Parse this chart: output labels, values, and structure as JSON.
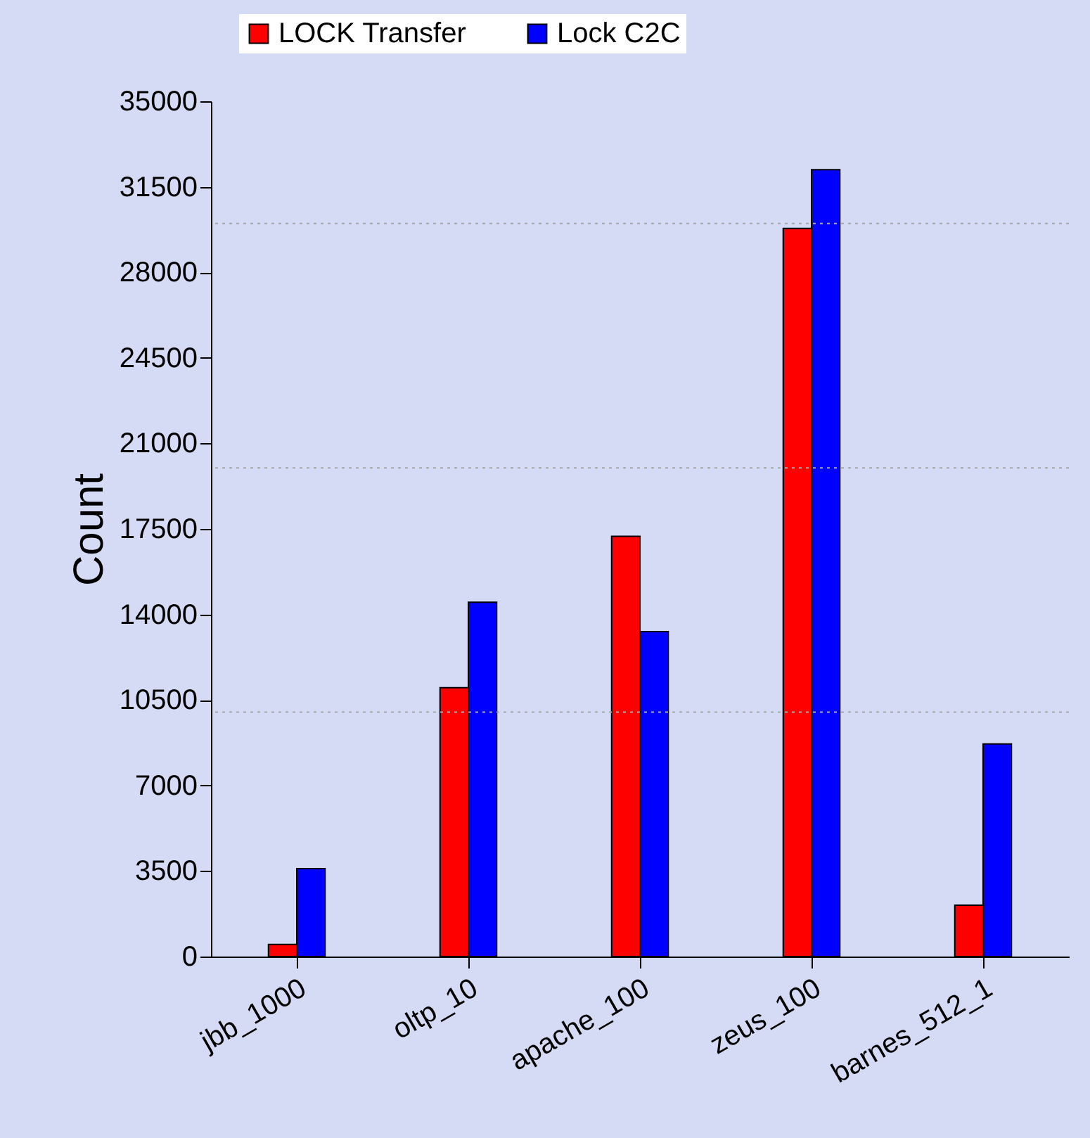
{
  "chart_data": {
    "type": "bar",
    "ylabel": "Count",
    "categories": [
      "jbb_1000",
      "oltp_10",
      "apache_100",
      "zeus_100",
      "barnes_512_1"
    ],
    "series": [
      {
        "name": "LOCK Transfer",
        "color": "#ff0000",
        "values": [
          500,
          11000,
          17200,
          29800,
          2100
        ]
      },
      {
        "name": "Lock C2C",
        "color": "#0000ff",
        "values": [
          3600,
          14500,
          13300,
          32200,
          8700
        ]
      }
    ],
    "ylim": [
      0,
      35000
    ],
    "yticks": [
      0,
      3500,
      7000,
      10500,
      14000,
      17500,
      21000,
      24500,
      28000,
      31500,
      35000
    ],
    "ref_lines": [
      {
        "axis": "y",
        "value": 10000,
        "color": "#a8a8a8",
        "line_style": "dotted"
      },
      {
        "axis": "y",
        "value": 20000,
        "color": "#a8a8a8",
        "line_style": "dotted"
      },
      {
        "axis": "y",
        "value": 30000,
        "color": "#a8a8a8",
        "line_style": "dotted"
      }
    ],
    "legend": "top"
  }
}
